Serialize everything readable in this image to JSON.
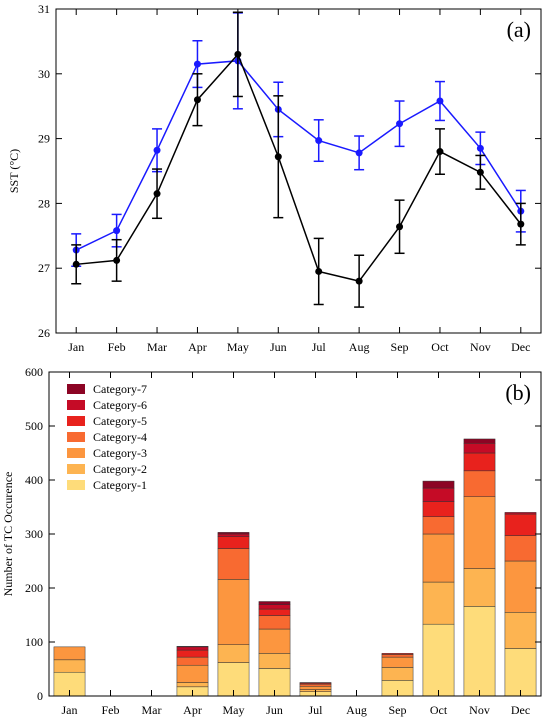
{
  "chart_data": [
    {
      "type": "line",
      "panel_label": "(a)",
      "ylabel": "SST (°C)",
      "ylim": [
        26,
        31
      ],
      "yticks": [
        26,
        27,
        28,
        29,
        30,
        31
      ],
      "categories": [
        "Jan",
        "Feb",
        "Mar",
        "Apr",
        "May",
        "Jun",
        "Jul",
        "Aug",
        "Sep",
        "Oct",
        "Nov",
        "Dec"
      ],
      "series": [
        {
          "color": "#1a1aff",
          "values": [
            27.28,
            27.58,
            28.82,
            30.15,
            30.2,
            29.45,
            28.97,
            28.78,
            29.23,
            29.58,
            28.85,
            27.88
          ],
          "error": [
            0.25,
            0.25,
            0.33,
            0.36,
            0.74,
            0.42,
            0.32,
            0.26,
            0.35,
            0.3,
            0.25,
            0.32
          ]
        },
        {
          "color": "#000000",
          "values": [
            27.06,
            27.12,
            28.15,
            29.6,
            30.3,
            28.72,
            26.95,
            26.8,
            27.64,
            28.8,
            28.48,
            27.68
          ],
          "error": [
            0.3,
            0.32,
            0.38,
            0.4,
            0.65,
            0.94,
            0.51,
            0.4,
            0.41,
            0.35,
            0.26,
            0.32
          ]
        }
      ]
    },
    {
      "type": "bar",
      "stacked": true,
      "panel_label": "(b)",
      "ylabel": "Number of TC Occurence",
      "ylim": [
        0,
        600
      ],
      "yticks": [
        0,
        100,
        200,
        300,
        400,
        500,
        600
      ],
      "categories": [
        "Jan",
        "Feb",
        "Mar",
        "Apr",
        "May",
        "Jun",
        "Jul",
        "Aug",
        "Sep",
        "Oct",
        "Nov",
        "Dec"
      ],
      "legend_position": "top-left",
      "series": [
        {
          "name": "Category-1",
          "color": "#fedc7a",
          "values": [
            44,
            0,
            0,
            17,
            62,
            51,
            8,
            0,
            29,
            133,
            166,
            88
          ]
        },
        {
          "name": "Category-2",
          "color": "#fdb451",
          "values": [
            23,
            0,
            0,
            8,
            33,
            28,
            4,
            0,
            24,
            78,
            70,
            67
          ]
        },
        {
          "name": "Category-3",
          "color": "#fc963f",
          "values": [
            24,
            0,
            0,
            32,
            121,
            45,
            6,
            0,
            19,
            89,
            133,
            95
          ]
        },
        {
          "name": "Category-4",
          "color": "#f86a31",
          "values": [
            0,
            0,
            0,
            15,
            57,
            25,
            4,
            0,
            5,
            32,
            48,
            47
          ]
        },
        {
          "name": "Category-5",
          "color": "#e8221d",
          "values": [
            0,
            0,
            0,
            13,
            22,
            12,
            2,
            0,
            2,
            28,
            33,
            40
          ]
        },
        {
          "name": "Category-6",
          "color": "#c50b26",
          "values": [
            0,
            0,
            0,
            6,
            5,
            8,
            1,
            0,
            0,
            25,
            18,
            3
          ]
        },
        {
          "name": "Category-7",
          "color": "#8c0424",
          "values": [
            0,
            0,
            0,
            1,
            3,
            6,
            0,
            0,
            0,
            13,
            8,
            0
          ]
        }
      ]
    }
  ]
}
